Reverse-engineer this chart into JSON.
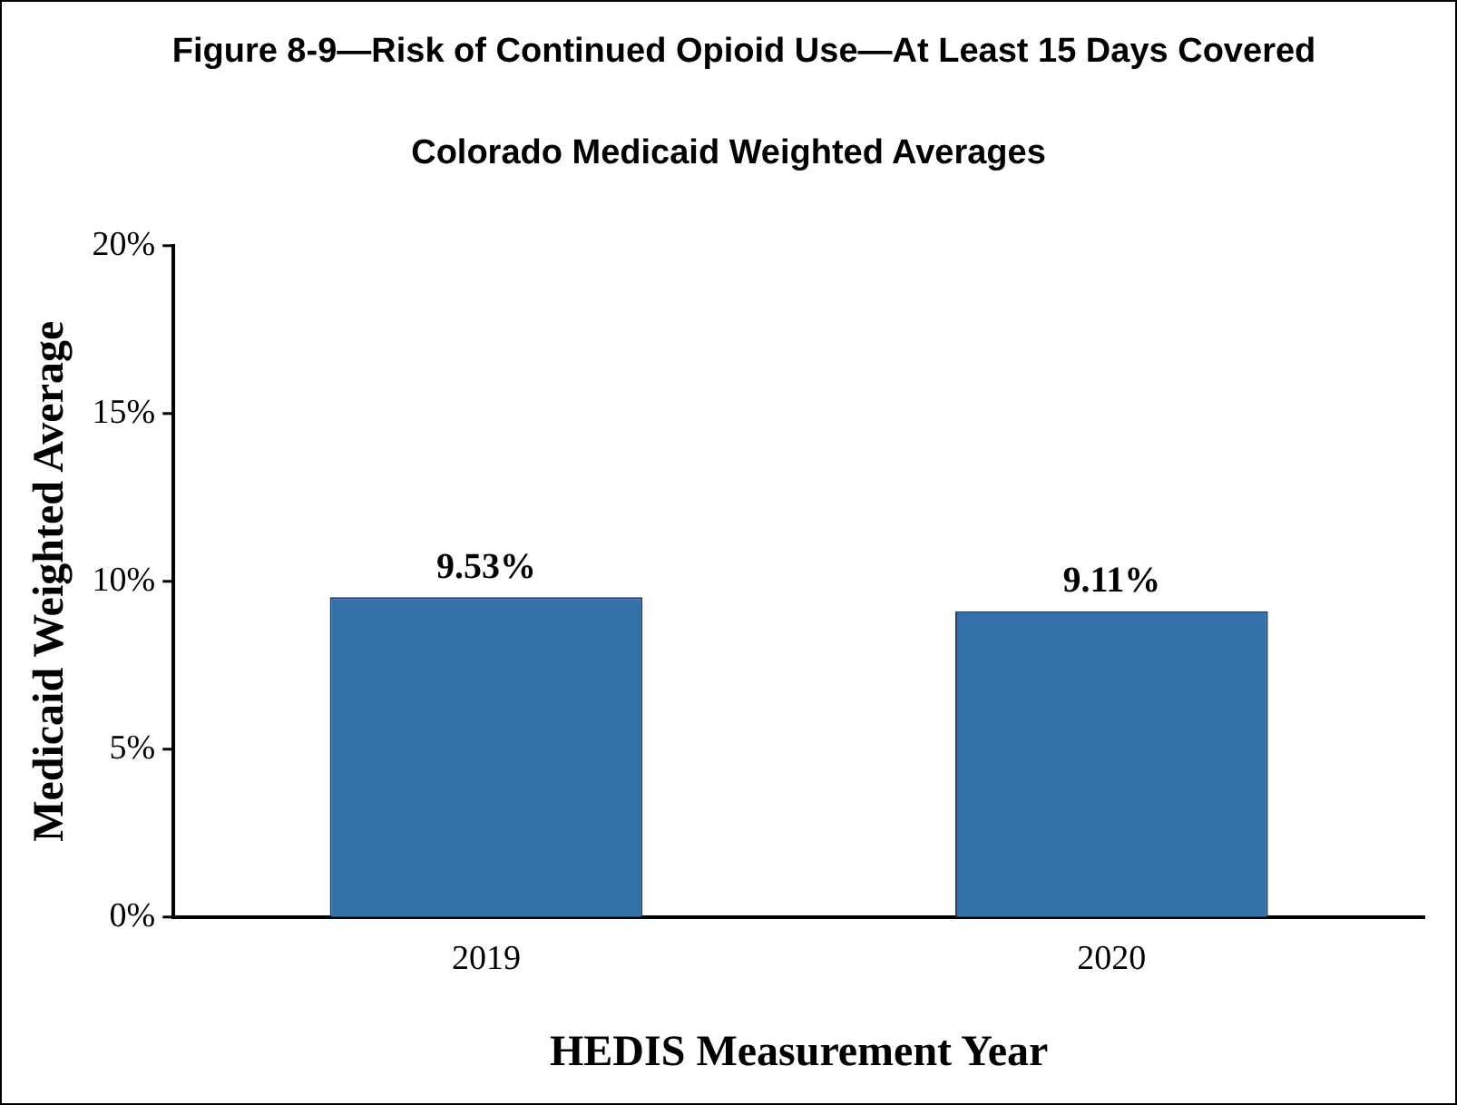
{
  "chart_data": {
    "type": "bar",
    "title": "Figure 8-9—Risk of Continued Opioid Use—At Least 15 Days Covered",
    "subtitle": "Colorado Medicaid Weighted Averages",
    "xlabel": "HEDIS Measurement Year",
    "ylabel": "Medicaid Weighted Average",
    "categories": [
      "2019",
      "2020"
    ],
    "values": [
      9.53,
      9.11
    ],
    "color": "#3471ab",
    "value_labels": [
      "9.53%",
      "9.11%"
    ],
    "ylim": [
      0,
      20
    ],
    "yticks": [
      {
        "value": 0,
        "label": "0%"
      },
      {
        "value": 5,
        "label": "5%"
      },
      {
        "value": 10,
        "label": "10%"
      },
      {
        "value": 15,
        "label": "15%"
      },
      {
        "value": 20,
        "label": "20%"
      }
    ],
    "grid": false,
    "legend": false
  }
}
